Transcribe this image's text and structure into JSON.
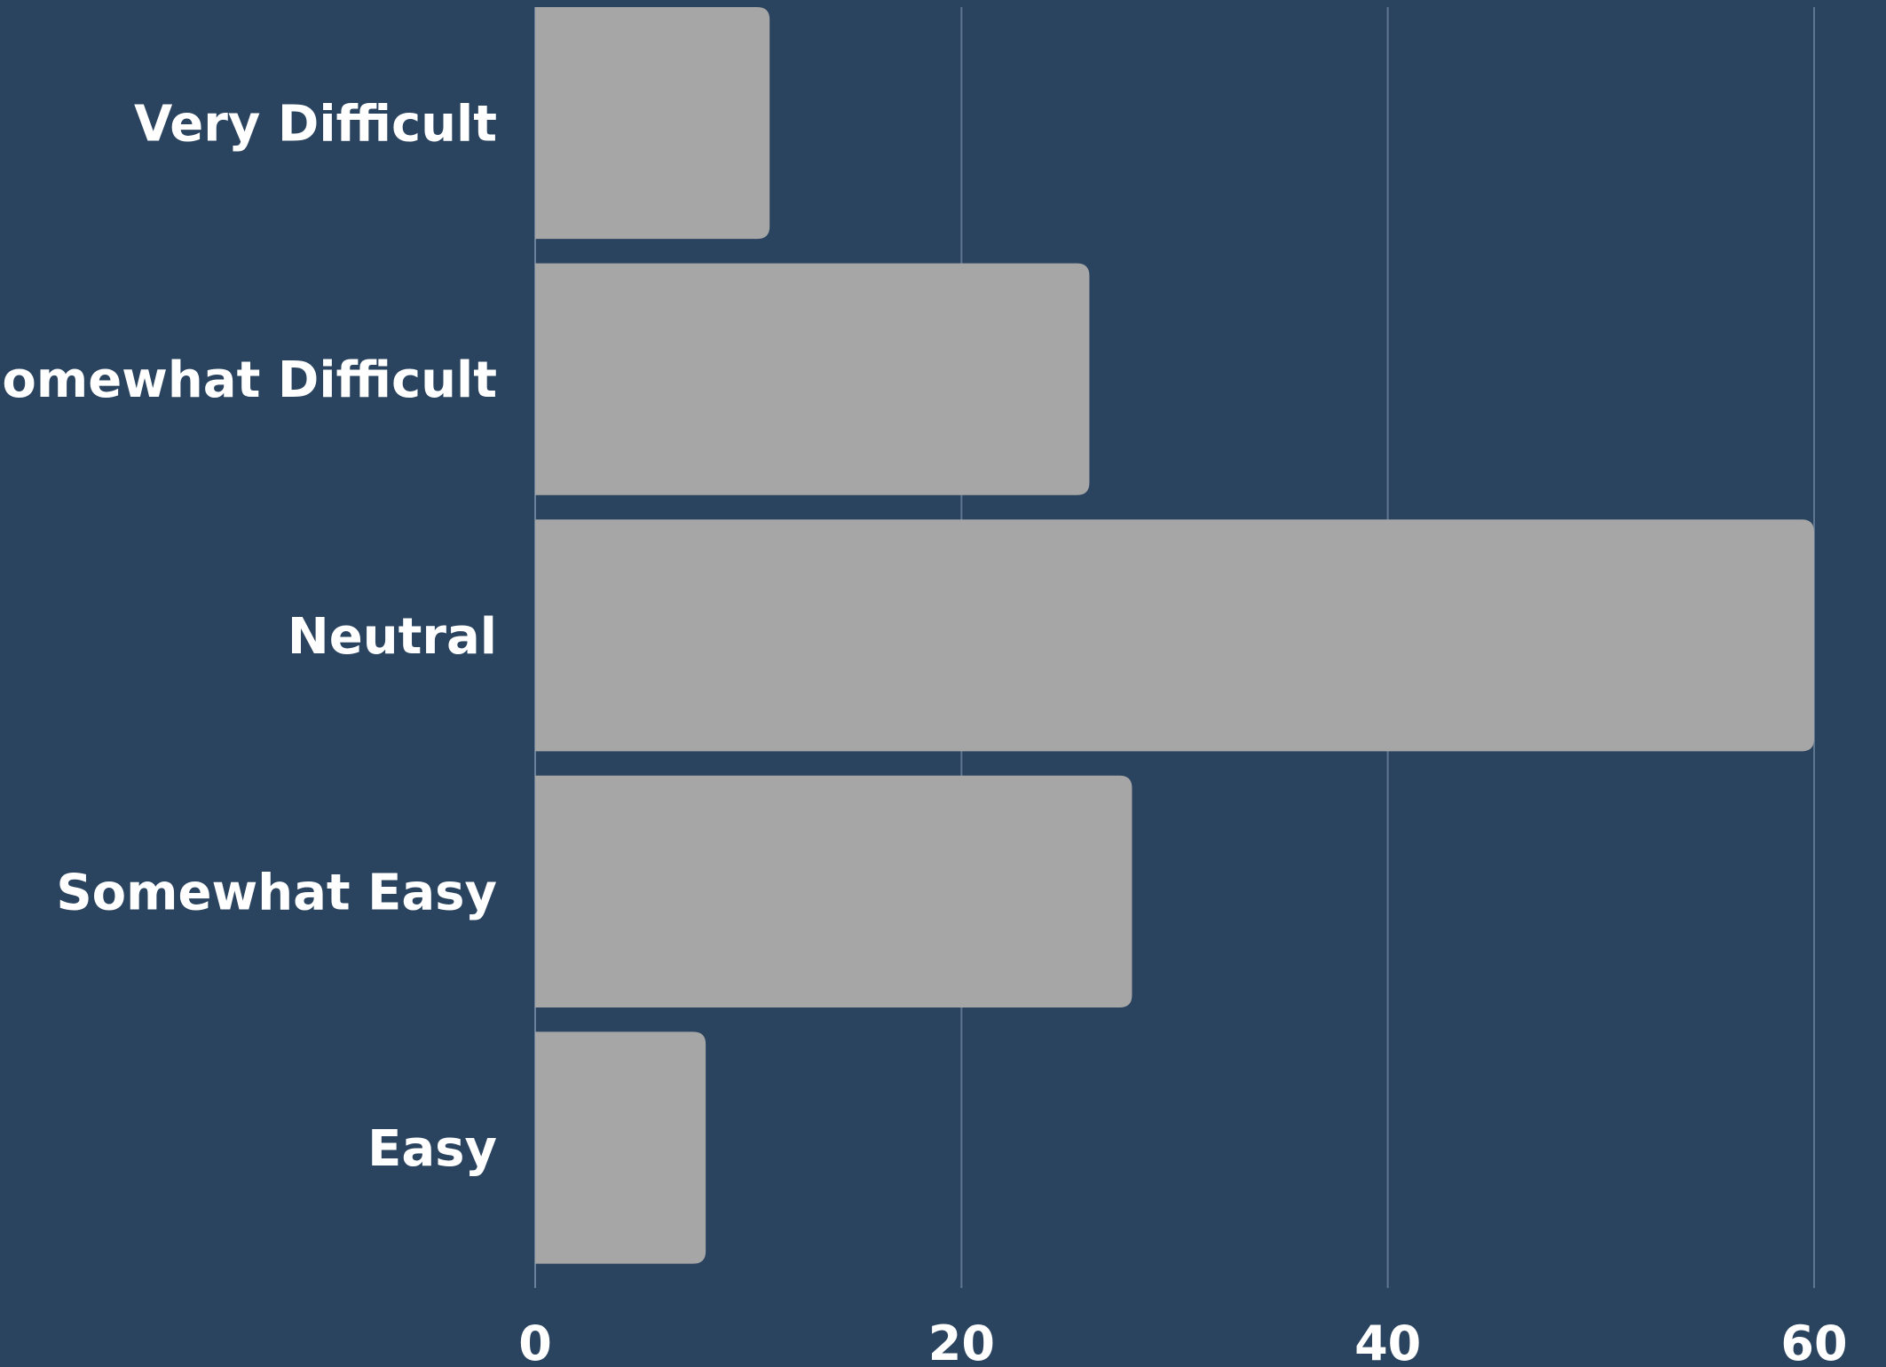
{
  "chart_data": {
    "type": "bar",
    "orientation": "horizontal",
    "categories": [
      "Very Difficult",
      "Somewhat Difficult",
      "Neutral",
      "Somewhat Easy",
      "Easy"
    ],
    "values": [
      11,
      26,
      60,
      28,
      8
    ],
    "xlim": [
      0,
      60
    ],
    "xticks": [
      0,
      20,
      40,
      60
    ],
    "grid": true,
    "colors": {
      "background": "#2a435f",
      "bar": "#a6a6a6",
      "text": "#ffffff",
      "grid": "#5f7690"
    }
  }
}
